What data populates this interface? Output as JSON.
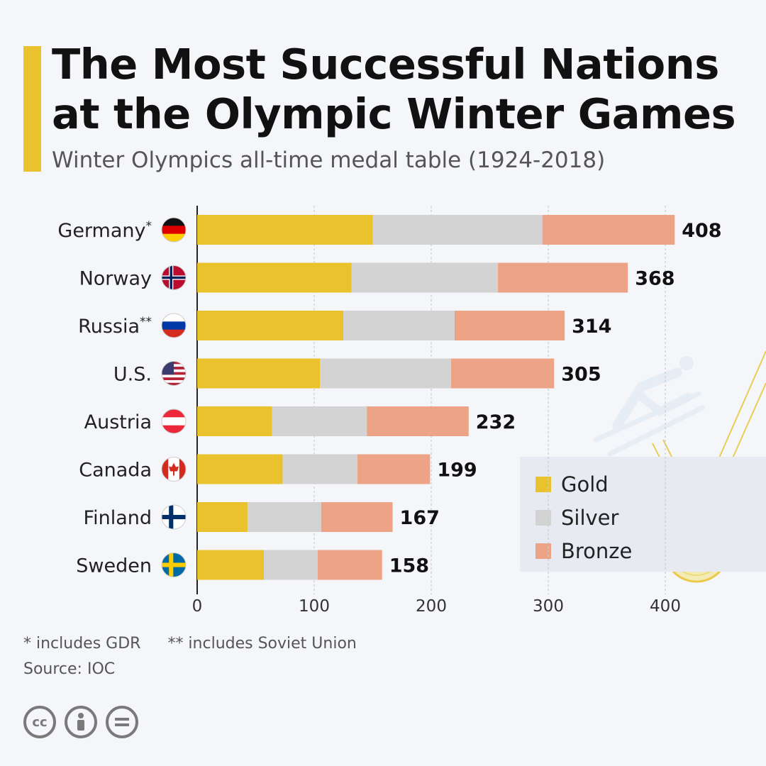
{
  "header": {
    "title": "The Most Successful Nations at the Olympic Winter Games",
    "subtitle": "Winter Olympics all-time medal table (1924-2018)"
  },
  "chart_data": {
    "type": "bar",
    "orientation": "horizontal",
    "stacked": true,
    "title": "The Most Successful Nations at the Olympic Winter Games",
    "subtitle": "Winter Olympics all-time medal table (1924-2018)",
    "categories": [
      "Germany*",
      "Norway",
      "Russia**",
      "U.S.",
      "Austria",
      "Canada",
      "Finland",
      "Sweden"
    ],
    "flags": [
      "germany-flag-icon",
      "norway-flag-icon",
      "russia-flag-icon",
      "usa-flag-icon",
      "austria-flag-icon",
      "canada-flag-icon",
      "finland-flag-icon",
      "sweden-flag-icon"
    ],
    "series": [
      {
        "name": "Gold",
        "color": "#e9c22d",
        "values": [
          150,
          132,
          125,
          105,
          64,
          73,
          43,
          57
        ]
      },
      {
        "name": "Silver",
        "color": "#d3d3d3",
        "values": [
          145,
          125,
          95,
          112,
          81,
          64,
          63,
          46
        ]
      },
      {
        "name": "Bronze",
        "color": "#eda386",
        "values": [
          113,
          111,
          94,
          88,
          87,
          62,
          61,
          55
        ]
      }
    ],
    "totals": [
      408,
      368,
      314,
      305,
      232,
      199,
      167,
      158
    ],
    "xlim": [
      0,
      400
    ],
    "xticks": [
      0,
      100,
      200,
      300,
      400
    ],
    "grid": true,
    "legend": "bottom-right"
  },
  "footnotes": {
    "note1": "* includes GDR",
    "note2": "** includes Soviet Union",
    "source": "Source: IOC"
  },
  "license_icons": [
    "cc-icon",
    "attribution-icon",
    "no-derivatives-icon"
  ]
}
